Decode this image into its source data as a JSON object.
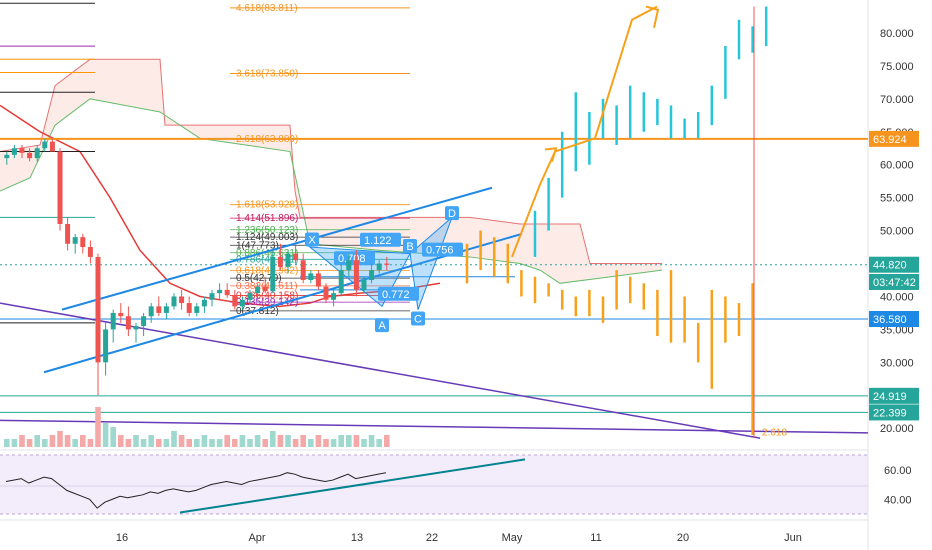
{
  "chart_data": {
    "type": "candlestick",
    "price_axis": {
      "range": [
        17.0,
        85.0
      ],
      "ticks": [
        "20.000",
        "30.000",
        "35.000",
        "40.000",
        "50.000",
        "55.000",
        "60.000",
        "65.000",
        "70.000",
        "75.000",
        "80.000"
      ]
    },
    "time_axis": {
      "labels": [
        "16",
        "Apr",
        "13",
        "22",
        "May",
        "11",
        "20",
        "Jun"
      ]
    },
    "price_tags": [
      {
        "value": 63.924,
        "label": "63.924",
        "color": "#f7941d"
      },
      {
        "value": 44.82,
        "label": "44.820",
        "color": "#26a69a"
      },
      {
        "value": 42.2,
        "label": "03:47:42",
        "color": "#26a69a"
      },
      {
        "value": 36.58,
        "label": "36.580",
        "color": "#1e88e5"
      },
      {
        "value": 24.919,
        "label": "24.919",
        "color": "#26a69a"
      },
      {
        "value": 22.399,
        "label": "22.399",
        "color": "#26a69a"
      }
    ],
    "fib_extension": [
      {
        "label": "4.618(83.811)",
        "value": 83.811
      },
      {
        "label": "3.618(73.850)",
        "value": 73.85
      },
      {
        "label": "2.618(63.889)",
        "value": 63.889
      }
    ],
    "fib_retracement": [
      {
        "label": "1.618(53.928)",
        "value": 53.928
      },
      {
        "label": "1.414(51.896)",
        "value": 51.896
      },
      {
        "label": "1.236(50.123)",
        "value": 50.123
      },
      {
        "label": "1.124(49.003)",
        "value": 49.003
      },
      {
        "label": "1(47.773)",
        "value": 47.773
      },
      {
        "label": "0.886(46.631)",
        "value": 46.631
      },
      {
        "label": "0.786(45.641)",
        "value": 45.641
      },
      {
        "label": "0.618(43.962)",
        "value": 43.962
      },
      {
        "label": "0.5(42.79)",
        "value": 42.79
      },
      {
        "label": "0.382(41.611)",
        "value": 41.611
      },
      {
        "label": "0.236(40.158)",
        "value": 40.158
      },
      {
        "label": "0.135(39.142)",
        "value": 39.142
      },
      {
        "label": "0(37.812)",
        "value": 37.812
      }
    ],
    "pattern_points": [
      "X",
      "A",
      "B",
      "C",
      "D"
    ],
    "pattern_ratios": [
      "0.708",
      "1.122",
      "0.756",
      "0.772"
    ],
    "bottom_target_label": "2.618",
    "rsi": {
      "ticks": [
        "40.00",
        "60.00"
      ],
      "range": [
        30,
        70
      ],
      "upper": 70,
      "lower": 30
    },
    "candles": [
      [
        61,
        62,
        60,
        61.5
      ],
      [
        61.5,
        63,
        61,
        62.5
      ],
      [
        62.5,
        63,
        61,
        61.8
      ],
      [
        61.8,
        62.5,
        60.5,
        61
      ],
      [
        61,
        63,
        60.5,
        62.5
      ],
      [
        62.5,
        64,
        62,
        63.5
      ],
      [
        63.5,
        64.2,
        62,
        62
      ],
      [
        62,
        62.5,
        50,
        51
      ],
      [
        51,
        52,
        47,
        48
      ],
      [
        48,
        49.5,
        46.5,
        49
      ],
      [
        49,
        49.5,
        46.5,
        47.5
      ],
      [
        47.5,
        48.5,
        45,
        46
      ],
      [
        46,
        46.5,
        25,
        30
      ],
      [
        30,
        36,
        28,
        35
      ],
      [
        35,
        38,
        33,
        37.5
      ],
      [
        37.5,
        39,
        36,
        37
      ],
      [
        37,
        38.5,
        34,
        35
      ],
      [
        35,
        36,
        33,
        35.5
      ],
      [
        35.5,
        37.5,
        34,
        37
      ],
      [
        37,
        39,
        36,
        38.5
      ],
      [
        38.5,
        40,
        37,
        37.5
      ],
      [
        37.5,
        39,
        36.5,
        38.5
      ],
      [
        38.5,
        40.5,
        38,
        40
      ],
      [
        40,
        41,
        38,
        39
      ],
      [
        39,
        40,
        37,
        37.5
      ],
      [
        37.5,
        39,
        37,
        38.5
      ],
      [
        38.5,
        40,
        37.5,
        39.5
      ],
      [
        39.5,
        41,
        38.5,
        40.5
      ],
      [
        40.5,
        42,
        39.5,
        41
      ],
      [
        41,
        42,
        39.8,
        40.2
      ],
      [
        40.2,
        41,
        38,
        38.5
      ],
      [
        38.5,
        40,
        38,
        39.5
      ],
      [
        39.5,
        41,
        39,
        40.5
      ],
      [
        40.5,
        42,
        39.5,
        41.5
      ],
      [
        41.5,
        43,
        40.5,
        40.8
      ],
      [
        40.8,
        47,
        40.5,
        46
      ],
      [
        46,
        48,
        44,
        44.5
      ],
      [
        44.5,
        47,
        43.5,
        46.5
      ],
      [
        46.5,
        48,
        45,
        45.5
      ],
      [
        45.5,
        46.5,
        42,
        42.5
      ],
      [
        42.5,
        44,
        42,
        43.5
      ],
      [
        43.5,
        44,
        41,
        41.5
      ],
      [
        41.5,
        42,
        39,
        39.5
      ],
      [
        39.5,
        41,
        38.5,
        40.5
      ],
      [
        40.5,
        45,
        40,
        44
      ],
      [
        44,
        46.5,
        43,
        45.5
      ],
      [
        45.5,
        47,
        40,
        41
      ],
      [
        41,
        43,
        40.5,
        42.5
      ],
      [
        42.5,
        45,
        42,
        44
      ],
      [
        44,
        45.5,
        43.5,
        45
      ],
      [
        45,
        46,
        44,
        44.8
      ]
    ],
    "projection_bars": [
      [
        48,
        42
      ],
      [
        50,
        44
      ],
      [
        49,
        43
      ],
      [
        48,
        42
      ],
      [
        44,
        40
      ],
      [
        43,
        39
      ],
      [
        42,
        40
      ],
      [
        41,
        38
      ],
      [
        40,
        37
      ],
      [
        41,
        37
      ],
      [
        40,
        36
      ],
      [
        44,
        38
      ],
      [
        43,
        39
      ],
      [
        42,
        38
      ],
      [
        41,
        34
      ],
      [
        44,
        33
      ],
      [
        40,
        33
      ],
      [
        36,
        30
      ],
      [
        41,
        26
      ],
      [
        40,
        33
      ],
      [
        39,
        34
      ],
      [
        42,
        19
      ]
    ],
    "projection_up_bars": [
      [
        53,
        46
      ],
      [
        58,
        50
      ],
      [
        65,
        55
      ],
      [
        71,
        59
      ],
      [
        68,
        60
      ],
      [
        70,
        64
      ],
      [
        69,
        63
      ],
      [
        72,
        64
      ],
      [
        71,
        65
      ],
      [
        70,
        66
      ],
      [
        69,
        64
      ],
      [
        67,
        64
      ],
      [
        68,
        64
      ],
      [
        72,
        66
      ],
      [
        78,
        70
      ],
      [
        82,
        76
      ],
      [
        81,
        77
      ],
      [
        84,
        78
      ]
    ],
    "volume": [
      2,
      2,
      3,
      2,
      3,
      2,
      3,
      4,
      3,
      2,
      3,
      2,
      10,
      6,
      5,
      3,
      2,
      3,
      2,
      3,
      2,
      2,
      4,
      3,
      2,
      2,
      3,
      2,
      2,
      3,
      2,
      3,
      2,
      3,
      2,
      4,
      3,
      3,
      2,
      3,
      2,
      3,
      2,
      2,
      3,
      3,
      3,
      2,
      3,
      2,
      3
    ],
    "rsi_values": [
      52,
      53,
      54,
      51,
      53,
      55,
      54,
      50,
      46,
      44,
      42,
      40,
      34,
      38,
      40,
      42,
      41,
      42,
      43,
      45,
      44,
      46,
      47,
      46,
      45,
      46,
      48,
      50,
      51,
      52,
      51,
      50,
      52,
      53,
      54,
      55,
      56,
      58,
      57,
      55,
      54,
      53,
      52,
      53,
      55,
      57,
      54,
      55,
      56,
      57,
      58
    ]
  }
}
